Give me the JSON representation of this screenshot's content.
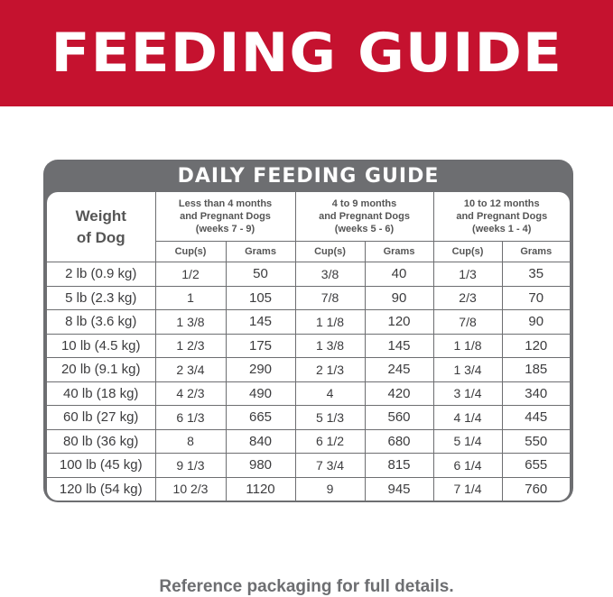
{
  "banner": {
    "title": "FEEDING GUIDE",
    "background": "#c5122f"
  },
  "table": {
    "title": "DAILY FEEDING GUIDE",
    "border_color": "#6d6e71",
    "weight_header": [
      "Weight",
      "of Dog"
    ],
    "groups": [
      {
        "lines": [
          "Less than 4 months",
          "and Pregnant Dogs",
          "(weeks 7 - 9)"
        ]
      },
      {
        "lines": [
          "4 to 9 months",
          "and Pregnant Dogs",
          "(weeks 5 - 6)"
        ]
      },
      {
        "lines": [
          "10 to 12 months",
          "and Pregnant Dogs",
          "(weeks 1 - 4)"
        ]
      }
    ],
    "sub_headers": [
      "Cup(s)",
      "Grams",
      "Cup(s)",
      "Grams",
      "Cup(s)",
      "Grams"
    ],
    "rows": [
      {
        "weight": "2 lb (0.9 kg)",
        "values": [
          "1/2",
          "50",
          "3/8",
          "40",
          "1/3",
          "35"
        ]
      },
      {
        "weight": "5 lb (2.3 kg)",
        "values": [
          "1",
          "105",
          "7/8",
          "90",
          "2/3",
          "70"
        ]
      },
      {
        "weight": "8 lb (3.6 kg)",
        "values": [
          "1 3/8",
          "145",
          "1 1/8",
          "120",
          "7/8",
          "90"
        ]
      },
      {
        "weight": "10 lb (4.5 kg)",
        "values": [
          "1 2/3",
          "175",
          "1 3/8",
          "145",
          "1 1/8",
          "120"
        ]
      },
      {
        "weight": "20 lb (9.1 kg)",
        "values": [
          "2 3/4",
          "290",
          "2 1/3",
          "245",
          "1 3/4",
          "185"
        ]
      },
      {
        "weight": "40 lb (18 kg)",
        "values": [
          "4 2/3",
          "490",
          "4",
          "420",
          "3 1/4",
          "340"
        ]
      },
      {
        "weight": "60 lb (27 kg)",
        "values": [
          "6 1/3",
          "665",
          "5 1/3",
          "560",
          "4 1/4",
          "445"
        ]
      },
      {
        "weight": "80 lb (36 kg)",
        "values": [
          "8",
          "840",
          "6 1/2",
          "680",
          "5 1/4",
          "550"
        ]
      },
      {
        "weight": "100 lb (45 kg)",
        "values": [
          "9 1/3",
          "980",
          "7 3/4",
          "815",
          "6 1/4",
          "655"
        ]
      },
      {
        "weight": "120 lb (54 kg)",
        "values": [
          "10 2/3",
          "1120",
          "9",
          "945",
          "7 1/4",
          "760"
        ]
      }
    ]
  },
  "footer": {
    "text": "Reference packaging for full details."
  }
}
